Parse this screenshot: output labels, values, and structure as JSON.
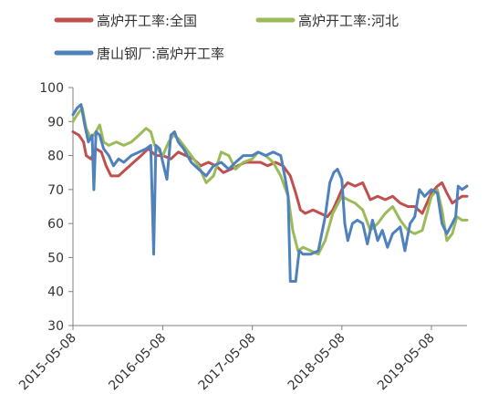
{
  "chart_data": {
    "type": "line",
    "title": "",
    "xlabel": "",
    "ylabel": "",
    "ylim": [
      30,
      100
    ],
    "y_ticks": [
      30,
      40,
      50,
      60,
      70,
      80,
      90,
      100
    ],
    "x_ticks": [
      "2015-05-08",
      "2016-05-08",
      "2017-05-08",
      "2018-05-08",
      "2019-05-08"
    ],
    "xlim": [
      "2015-05-08",
      "2019-09-30"
    ],
    "grid": false,
    "legend_position": "top",
    "series": [
      {
        "name": "高炉开工率:全国",
        "color": "#c0504d",
        "points": [
          [
            "2015-05-08",
            87
          ],
          [
            "2015-06-01",
            86
          ],
          [
            "2015-06-20",
            84
          ],
          [
            "2015-07-01",
            80
          ],
          [
            "2015-07-20",
            79
          ],
          [
            "2015-08-10",
            82
          ],
          [
            "2015-09-01",
            81
          ],
          [
            "2015-09-20",
            77
          ],
          [
            "2015-10-10",
            74
          ],
          [
            "2015-11-10",
            74
          ],
          [
            "2015-12-10",
            76
          ],
          [
            "2016-01-10",
            78
          ],
          [
            "2016-02-10",
            80
          ],
          [
            "2016-03-10",
            82
          ],
          [
            "2016-04-10",
            80
          ],
          [
            "2016-05-08",
            80
          ],
          [
            "2016-06-10",
            79
          ],
          [
            "2016-07-10",
            81
          ],
          [
            "2016-08-10",
            80
          ],
          [
            "2016-09-10",
            79
          ],
          [
            "2016-10-10",
            77
          ],
          [
            "2016-11-10",
            78
          ],
          [
            "2016-12-10",
            77
          ],
          [
            "2017-01-10",
            75
          ],
          [
            "2017-02-10",
            76
          ],
          [
            "2017-03-10",
            77
          ],
          [
            "2017-04-10",
            78
          ],
          [
            "2017-05-08",
            78
          ],
          [
            "2017-06-10",
            78
          ],
          [
            "2017-07-10",
            77
          ],
          [
            "2017-08-10",
            78
          ],
          [
            "2017-09-10",
            77
          ],
          [
            "2017-10-10",
            74
          ],
          [
            "2017-11-01",
            69
          ],
          [
            "2017-11-20",
            64
          ],
          [
            "2017-12-10",
            63
          ],
          [
            "2018-01-10",
            64
          ],
          [
            "2018-02-10",
            63
          ],
          [
            "2018-03-10",
            62
          ],
          [
            "2018-04-01",
            64
          ],
          [
            "2018-04-20",
            67
          ],
          [
            "2018-05-08",
            70
          ],
          [
            "2018-06-01",
            72
          ],
          [
            "2018-07-01",
            71
          ],
          [
            "2018-08-01",
            72
          ],
          [
            "2018-09-01",
            67
          ],
          [
            "2018-10-01",
            68
          ],
          [
            "2018-11-01",
            67
          ],
          [
            "2018-12-01",
            68
          ],
          [
            "2019-01-01",
            66
          ],
          [
            "2019-02-01",
            65
          ],
          [
            "2019-03-01",
            65
          ],
          [
            "2019-04-01",
            63
          ],
          [
            "2019-05-08",
            69
          ],
          [
            "2019-06-01",
            71
          ],
          [
            "2019-06-20",
            72
          ],
          [
            "2019-07-10",
            69
          ],
          [
            "2019-08-01",
            66
          ],
          [
            "2019-08-20",
            67
          ],
          [
            "2019-09-10",
            68
          ],
          [
            "2019-09-30",
            68
          ]
        ]
      },
      {
        "name": "高炉开工率:河北",
        "color": "#9bbb59",
        "points": [
          [
            "2015-05-08",
            90
          ],
          [
            "2015-05-25",
            92
          ],
          [
            "2015-06-15",
            94
          ],
          [
            "2015-07-01",
            88
          ],
          [
            "2015-07-20",
            85
          ],
          [
            "2015-08-10",
            87
          ],
          [
            "2015-08-25",
            89
          ],
          [
            "2015-09-10",
            84
          ],
          [
            "2015-10-01",
            83
          ],
          [
            "2015-11-01",
            84
          ],
          [
            "2015-12-01",
            83
          ],
          [
            "2016-01-01",
            84
          ],
          [
            "2016-02-01",
            86
          ],
          [
            "2016-03-01",
            88
          ],
          [
            "2016-03-20",
            87
          ],
          [
            "2016-04-05",
            83
          ],
          [
            "2016-05-08",
            80
          ],
          [
            "2016-06-01",
            84
          ],
          [
            "2016-06-20",
            86
          ],
          [
            "2016-07-10",
            85
          ],
          [
            "2016-08-01",
            83
          ],
          [
            "2016-09-01",
            80
          ],
          [
            "2016-10-01",
            77
          ],
          [
            "2016-11-01",
            72
          ],
          [
            "2016-12-01",
            74
          ],
          [
            "2017-01-01",
            81
          ],
          [
            "2017-02-01",
            80
          ],
          [
            "2017-03-01",
            76
          ],
          [
            "2017-04-01",
            78
          ],
          [
            "2017-05-08",
            79
          ],
          [
            "2017-06-01",
            81
          ],
          [
            "2017-07-01",
            80
          ],
          [
            "2017-08-01",
            78
          ],
          [
            "2017-09-01",
            74
          ],
          [
            "2017-10-01",
            68
          ],
          [
            "2017-10-20",
            58
          ],
          [
            "2017-11-10",
            52
          ],
          [
            "2017-12-01",
            53
          ],
          [
            "2018-01-01",
            52
          ],
          [
            "2018-02-01",
            51
          ],
          [
            "2018-03-01",
            55
          ],
          [
            "2018-04-01",
            63
          ],
          [
            "2018-05-08",
            68
          ],
          [
            "2018-06-01",
            67
          ],
          [
            "2018-07-01",
            66
          ],
          [
            "2018-08-01",
            64
          ],
          [
            "2018-09-01",
            58
          ],
          [
            "2018-10-01",
            60
          ],
          [
            "2018-11-01",
            63
          ],
          [
            "2018-12-01",
            65
          ],
          [
            "2019-01-01",
            61
          ],
          [
            "2019-02-01",
            58
          ],
          [
            "2019-03-01",
            57
          ],
          [
            "2019-04-01",
            58
          ],
          [
            "2019-05-08",
            68
          ],
          [
            "2019-06-01",
            70
          ],
          [
            "2019-06-20",
            64
          ],
          [
            "2019-07-10",
            55
          ],
          [
            "2019-08-01",
            57
          ],
          [
            "2019-08-20",
            62
          ],
          [
            "2019-09-10",
            61
          ],
          [
            "2019-09-30",
            61
          ]
        ]
      },
      {
        "name": "唐山钢厂:高炉开工率",
        "color": "#4f81bd",
        "points": [
          [
            "2015-05-08",
            92
          ],
          [
            "2015-05-25",
            94
          ],
          [
            "2015-06-10",
            95
          ],
          [
            "2015-06-25",
            89
          ],
          [
            "2015-07-10",
            84
          ],
          [
            "2015-07-25",
            86
          ],
          [
            "2015-08-01",
            70
          ],
          [
            "2015-08-10",
            87
          ],
          [
            "2015-08-25",
            86
          ],
          [
            "2015-09-10",
            82
          ],
          [
            "2015-10-01",
            80
          ],
          [
            "2015-10-20",
            77
          ],
          [
            "2015-11-10",
            79
          ],
          [
            "2015-12-01",
            78
          ],
          [
            "2016-01-01",
            80
          ],
          [
            "2016-02-01",
            81
          ],
          [
            "2016-03-01",
            82
          ],
          [
            "2016-03-20",
            83
          ],
          [
            "2016-04-01",
            51
          ],
          [
            "2016-04-10",
            83
          ],
          [
            "2016-04-25",
            82
          ],
          [
            "2016-05-08",
            78
          ],
          [
            "2016-05-25",
            73
          ],
          [
            "2016-06-10",
            86
          ],
          [
            "2016-06-25",
            87
          ],
          [
            "2016-07-10",
            84
          ],
          [
            "2016-08-01",
            82
          ],
          [
            "2016-09-01",
            78
          ],
          [
            "2016-10-01",
            76
          ],
          [
            "2016-11-01",
            74
          ],
          [
            "2016-12-01",
            77
          ],
          [
            "2017-01-01",
            78
          ],
          [
            "2017-02-01",
            76
          ],
          [
            "2017-03-01",
            78
          ],
          [
            "2017-04-01",
            80
          ],
          [
            "2017-05-08",
            80
          ],
          [
            "2017-06-01",
            81
          ],
          [
            "2017-07-01",
            80
          ],
          [
            "2017-08-01",
            81
          ],
          [
            "2017-09-01",
            80
          ],
          [
            "2017-09-20",
            73
          ],
          [
            "2017-10-01",
            68
          ],
          [
            "2017-10-10",
            43
          ],
          [
            "2017-11-01",
            43
          ],
          [
            "2017-11-15",
            52
          ],
          [
            "2017-12-01",
            51
          ],
          [
            "2018-01-01",
            51
          ],
          [
            "2018-02-01",
            52
          ],
          [
            "2018-03-01",
            62
          ],
          [
            "2018-03-20",
            72
          ],
          [
            "2018-04-05",
            75
          ],
          [
            "2018-04-20",
            76
          ],
          [
            "2018-05-08",
            73
          ],
          [
            "2018-05-20",
            60
          ],
          [
            "2018-06-01",
            55
          ],
          [
            "2018-06-20",
            60
          ],
          [
            "2018-07-10",
            61
          ],
          [
            "2018-08-01",
            60
          ],
          [
            "2018-08-20",
            54
          ],
          [
            "2018-09-10",
            61
          ],
          [
            "2018-10-01",
            55
          ],
          [
            "2018-10-20",
            58
          ],
          [
            "2018-11-10",
            53
          ],
          [
            "2018-12-01",
            57
          ],
          [
            "2019-01-01",
            59
          ],
          [
            "2019-01-20",
            52
          ],
          [
            "2019-02-10",
            60
          ],
          [
            "2019-03-01",
            62
          ],
          [
            "2019-03-20",
            70
          ],
          [
            "2019-04-10",
            68
          ],
          [
            "2019-05-08",
            70
          ],
          [
            "2019-06-01",
            69
          ],
          [
            "2019-06-20",
            60
          ],
          [
            "2019-07-10",
            57
          ],
          [
            "2019-08-01",
            60
          ],
          [
            "2019-08-15",
            62
          ],
          [
            "2019-08-25",
            71
          ],
          [
            "2019-09-10",
            70
          ],
          [
            "2019-09-30",
            71
          ]
        ]
      }
    ]
  }
}
